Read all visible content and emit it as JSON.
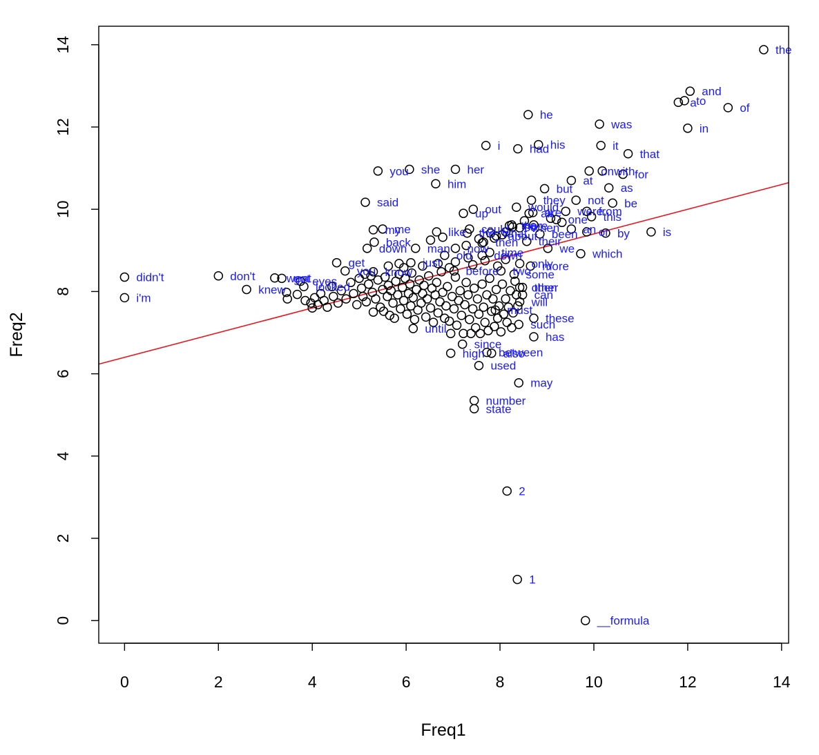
{
  "chart_data": {
    "type": "scatter",
    "title": "",
    "xlabel": "Freq1",
    "ylabel": "Freq2",
    "xlim": [
      -0.55,
      14.15
    ],
    "ylim": [
      -0.55,
      14.45
    ],
    "xticks": [
      "0",
      "2",
      "4",
      "6",
      "8",
      "10",
      "12",
      "14"
    ],
    "yticks": [
      "0",
      "2",
      "4",
      "6",
      "8",
      "10",
      "12",
      "14"
    ],
    "colors": {
      "points": "#000000",
      "labels": "#1a1aff",
      "fit_line": "#e8141e"
    },
    "regression_line": {
      "intercept": 6.4,
      "slope": 0.3
    },
    "labeled_points": [
      {
        "label": "the",
        "x": 13.62,
        "y": 13.88
      },
      {
        "label": "and",
        "x": 12.05,
        "y": 12.87
      },
      {
        "label": "a",
        "x": 11.8,
        "y": 12.6
      },
      {
        "label": "to",
        "x": 11.93,
        "y": 12.64
      },
      {
        "label": "of",
        "x": 12.86,
        "y": 12.47
      },
      {
        "label": "in",
        "x": 12.0,
        "y": 11.97
      },
      {
        "label": "he",
        "x": 8.6,
        "y": 12.3
      },
      {
        "label": "was",
        "x": 10.12,
        "y": 12.07
      },
      {
        "label": "his",
        "x": 8.82,
        "y": 11.57
      },
      {
        "label": "i",
        "x": 7.7,
        "y": 11.55
      },
      {
        "label": "had",
        "x": 8.38,
        "y": 11.47
      },
      {
        "label": "it",
        "x": 10.15,
        "y": 11.55
      },
      {
        "label": "that",
        "x": 10.73,
        "y": 11.35
      },
      {
        "label": "you",
        "x": 5.4,
        "y": 10.93
      },
      {
        "label": "she",
        "x": 6.07,
        "y": 10.97
      },
      {
        "label": "her",
        "x": 7.05,
        "y": 10.97
      },
      {
        "label": "on",
        "x": 9.9,
        "y": 10.93
      },
      {
        "label": "with",
        "x": 10.18,
        "y": 10.93
      },
      {
        "label": "for",
        "x": 10.62,
        "y": 10.85
      },
      {
        "label": "him",
        "x": 6.63,
        "y": 10.62
      },
      {
        "label": "at",
        "x": 9.52,
        "y": 10.7
      },
      {
        "label": "but",
        "x": 8.95,
        "y": 10.5
      },
      {
        "label": "as",
        "x": 10.32,
        "y": 10.52
      },
      {
        "label": "said",
        "x": 5.13,
        "y": 10.17
      },
      {
        "label": "they",
        "x": 8.67,
        "y": 10.22
      },
      {
        "label": "not",
        "x": 9.62,
        "y": 10.22
      },
      {
        "label": "be",
        "x": 10.4,
        "y": 10.15
      },
      {
        "label": "up",
        "x": 7.22,
        "y": 9.9
      },
      {
        "label": "out",
        "x": 7.43,
        "y": 10.0
      },
      {
        "label": "would",
        "x": 8.35,
        "y": 10.05
      },
      {
        "label": "all",
        "x": 8.62,
        "y": 9.9
      },
      {
        "label": "are",
        "x": 8.7,
        "y": 9.92
      },
      {
        "label": "were",
        "x": 9.4,
        "y": 9.95
      },
      {
        "label": "from",
        "x": 9.85,
        "y": 9.95
      },
      {
        "label": "this",
        "x": 9.95,
        "y": 9.82
      },
      {
        "label": "one",
        "x": 9.2,
        "y": 9.75
      },
      {
        "label": "me",
        "x": 5.5,
        "y": 9.52
      },
      {
        "label": "my",
        "x": 5.3,
        "y": 9.5
      },
      {
        "label": "like",
        "x": 6.65,
        "y": 9.45
      },
      {
        "label": "could",
        "x": 7.35,
        "y": 9.52
      },
      {
        "label": "the",
        "x": 7.3,
        "y": 9.42
      },
      {
        "label": "what",
        "x": 7.8,
        "y": 9.42
      },
      {
        "label": "about",
        "x": 7.92,
        "y": 9.35
      },
      {
        "label": "there",
        "x": 8.2,
        "y": 9.6
      },
      {
        "label": "so",
        "x": 8.27,
        "y": 9.57
      },
      {
        "label": "no",
        "x": 8.25,
        "y": 9.62
      },
      {
        "label": "when",
        "x": 8.42,
        "y": 9.55
      },
      {
        "label": "been",
        "x": 8.85,
        "y": 9.4
      },
      {
        "label": "an",
        "x": 9.52,
        "y": 9.52
      },
      {
        "label": "or",
        "x": 9.85,
        "y": 9.45
      },
      {
        "label": "by",
        "x": 10.25,
        "y": 9.42
      },
      {
        "label": "is",
        "x": 11.22,
        "y": 9.45
      },
      {
        "label": "back",
        "x": 5.32,
        "y": 9.2
      },
      {
        "label": "down",
        "x": 5.17,
        "y": 9.05
      },
      {
        "label": "then",
        "x": 7.65,
        "y": 9.2
      },
      {
        "label": "their",
        "x": 8.57,
        "y": 9.22
      },
      {
        "label": "man",
        "x": 6.2,
        "y": 9.05
      },
      {
        "label": "now",
        "x": 7.05,
        "y": 9.05
      },
      {
        "label": "we",
        "x": 9.02,
        "y": 9.05
      },
      {
        "label": "which",
        "x": 9.72,
        "y": 8.92
      },
      {
        "label": "old",
        "x": 6.82,
        "y": 8.88
      },
      {
        "label": "down",
        "x": 7.62,
        "y": 8.88
      },
      {
        "label": "time",
        "x": 7.78,
        "y": 8.95
      },
      {
        "label": "just",
        "x": 6.1,
        "y": 8.7
      },
      {
        "label": "get",
        "x": 4.52,
        "y": 8.7
      },
      {
        "label": "only",
        "x": 8.42,
        "y": 8.68
      },
      {
        "label": "more",
        "x": 8.65,
        "y": 8.62
      },
      {
        "label": "before",
        "x": 7.02,
        "y": 8.5
      },
      {
        "label": "two",
        "x": 8.02,
        "y": 8.5
      },
      {
        "label": "some",
        "x": 8.3,
        "y": 8.42
      },
      {
        "label": "you",
        "x": 4.7,
        "y": 8.5
      },
      {
        "label": "know",
        "x": 5.3,
        "y": 8.48
      },
      {
        "label": "didn't",
        "x": 0.0,
        "y": 8.35
      },
      {
        "label": "don't",
        "x": 2.0,
        "y": 8.38
      },
      {
        "label": "went",
        "x": 3.2,
        "y": 8.33
      },
      {
        "label": "got",
        "x": 3.35,
        "y": 8.32
      },
      {
        "label": "eyes",
        "x": 3.75,
        "y": 8.25
      },
      {
        "label": "knew",
        "x": 2.6,
        "y": 8.05
      },
      {
        "label": "looked",
        "x": 3.82,
        "y": 8.12
      },
      {
        "label": "other",
        "x": 8.42,
        "y": 8.1
      },
      {
        "label": "then",
        "x": 8.48,
        "y": 8.1
      },
      {
        "label": "can",
        "x": 8.48,
        "y": 7.92
      },
      {
        "label": "will",
        "x": 8.42,
        "y": 7.75
      },
      {
        "label": "i'm",
        "x": 0.0,
        "y": 7.85
      },
      {
        "label": "must",
        "x": 7.9,
        "y": 7.55
      },
      {
        "label": "these",
        "x": 8.72,
        "y": 7.35
      },
      {
        "label": "such",
        "x": 8.4,
        "y": 7.2
      },
      {
        "label": "until",
        "x": 6.15,
        "y": 7.1
      },
      {
        "label": "has",
        "x": 8.72,
        "y": 6.9
      },
      {
        "label": "since",
        "x": 7.2,
        "y": 6.72
      },
      {
        "label": "between",
        "x": 7.72,
        "y": 6.52
      },
      {
        "label": "high",
        "x": 6.95,
        "y": 6.5
      },
      {
        "label": "also",
        "x": 7.82,
        "y": 6.5
      },
      {
        "label": "used",
        "x": 7.55,
        "y": 6.2
      },
      {
        "label": "may",
        "x": 8.4,
        "y": 5.78
      },
      {
        "label": "number",
        "x": 7.45,
        "y": 5.35
      },
      {
        "label": "state",
        "x": 7.45,
        "y": 5.15
      },
      {
        "label": "2",
        "x": 8.15,
        "y": 3.15
      },
      {
        "label": "1",
        "x": 8.37,
        "y": 1.0
      },
      {
        "label": "__formula",
        "x": 9.82,
        "y": 0.0
      }
    ],
    "unlabeled_points": [
      [
        3.45,
        7.98
      ],
      [
        3.47,
        7.82
      ],
      [
        3.68,
        7.93
      ],
      [
        3.85,
        7.78
      ],
      [
        3.97,
        7.72
      ],
      [
        4.0,
        7.6
      ],
      [
        4.05,
        7.85
      ],
      [
        4.12,
        7.68
      ],
      [
        4.18,
        7.95
      ],
      [
        4.25,
        7.78
      ],
      [
        4.32,
        7.62
      ],
      [
        4.42,
        8.12
      ],
      [
        4.45,
        7.88
      ],
      [
        4.55,
        7.72
      ],
      [
        4.62,
        8.02
      ],
      [
        4.72,
        7.82
      ],
      [
        4.82,
        8.22
      ],
      [
        4.88,
        7.95
      ],
      [
        4.95,
        7.68
      ],
      [
        5.0,
        8.32
      ],
      [
        5.05,
        8.08
      ],
      [
        5.08,
        7.88
      ],
      [
        5.12,
        8.42
      ],
      [
        5.15,
        7.75
      ],
      [
        5.2,
        8.18
      ],
      [
        5.25,
        8.38
      ],
      [
        5.28,
        7.98
      ],
      [
        5.3,
        7.5
      ],
      [
        5.35,
        7.82
      ],
      [
        5.4,
        8.28
      ],
      [
        5.45,
        7.62
      ],
      [
        5.5,
        8.05
      ],
      [
        5.52,
        7.52
      ],
      [
        5.55,
        8.35
      ],
      [
        5.6,
        7.88
      ],
      [
        5.62,
        8.15
      ],
      [
        5.65,
        7.42
      ],
      [
        5.68,
        8.02
      ],
      [
        5.72,
        7.72
      ],
      [
        5.75,
        7.35
      ],
      [
        5.78,
        8.25
      ],
      [
        5.82,
        7.92
      ],
      [
        5.85,
        8.42
      ],
      [
        5.88,
        7.58
      ],
      [
        5.92,
        8.1
      ],
      [
        5.95,
        7.78
      ],
      [
        5.98,
        8.32
      ],
      [
        6.02,
        7.45
      ],
      [
        6.05,
        7.95
      ],
      [
        6.08,
        8.18
      ],
      [
        6.1,
        7.65
      ],
      [
        6.12,
        8.45
      ],
      [
        6.15,
        7.85
      ],
      [
        6.18,
        7.32
      ],
      [
        6.22,
        8.05
      ],
      [
        6.25,
        7.55
      ],
      [
        6.28,
        8.28
      ],
      [
        6.32,
        7.72
      ],
      [
        6.35,
        7.95
      ],
      [
        6.38,
        8.15
      ],
      [
        6.42,
        7.38
      ],
      [
        6.45,
        7.82
      ],
      [
        6.48,
        8.38
      ],
      [
        6.52,
        7.6
      ],
      [
        6.55,
        8.08
      ],
      [
        6.58,
        7.25
      ],
      [
        6.62,
        7.92
      ],
      [
        6.65,
        8.22
      ],
      [
        6.68,
        7.48
      ],
      [
        6.72,
        7.75
      ],
      [
        6.75,
        8.48
      ],
      [
        6.78,
        7.98
      ],
      [
        6.82,
        7.35
      ],
      [
        6.85,
        7.65
      ],
      [
        6.88,
        8.12
      ],
      [
        6.92,
        7.28
      ],
      [
        6.95,
        6.98
      ],
      [
        6.98,
        7.88
      ],
      [
        7.02,
        7.58
      ],
      [
        7.05,
        8.35
      ],
      [
        7.08,
        7.18
      ],
      [
        7.12,
        7.78
      ],
      [
        7.15,
        8.02
      ],
      [
        7.18,
        7.42
      ],
      [
        7.22,
        6.98
      ],
      [
        7.25,
        7.68
      ],
      [
        7.28,
        8.22
      ],
      [
        7.32,
        7.92
      ],
      [
        7.35,
        7.32
      ],
      [
        7.38,
        6.98
      ],
      [
        7.42,
        7.58
      ],
      [
        7.45,
        8.08
      ],
      [
        7.48,
        7.12
      ],
      [
        7.52,
        7.82
      ],
      [
        7.55,
        7.45
      ],
      [
        7.58,
        6.98
      ],
      [
        7.62,
        8.18
      ],
      [
        7.65,
        7.62
      ],
      [
        7.68,
        7.25
      ],
      [
        7.72,
        7.92
      ],
      [
        7.75,
        7.05
      ],
      [
        7.78,
        8.32
      ],
      [
        7.82,
        7.52
      ],
      [
        7.85,
        7.82
      ],
      [
        7.88,
        7.15
      ],
      [
        7.92,
        8.05
      ],
      [
        7.95,
        7.35
      ],
      [
        7.98,
        7.65
      ],
      [
        8.02,
        7.02
      ],
      [
        8.05,
        8.18
      ],
      [
        8.08,
        7.45
      ],
      [
        8.12,
        7.82
      ],
      [
        8.15,
        7.25
      ],
      [
        8.18,
        7.62
      ],
      [
        8.22,
        8.02
      ],
      [
        8.25,
        7.12
      ],
      [
        8.28,
        7.48
      ],
      [
        8.32,
        8.25
      ],
      [
        8.35,
        7.92
      ],
      [
        8.38,
        7.65
      ],
      [
        7.28,
        9.12
      ],
      [
        7.55,
        9.28
      ],
      [
        7.62,
        9.18
      ],
      [
        7.88,
        9.3
      ],
      [
        8.05,
        9.38
      ],
      [
        8.12,
        9.45
      ],
      [
        7.05,
        8.72
      ],
      [
        7.32,
        8.82
      ],
      [
        7.42,
        8.65
      ],
      [
        7.68,
        8.75
      ],
      [
        7.95,
        8.62
      ],
      [
        8.12,
        8.78
      ],
      [
        6.68,
        8.68
      ],
      [
        6.92,
        8.58
      ],
      [
        5.95,
        8.58
      ],
      [
        6.35,
        8.62
      ],
      [
        5.62,
        8.62
      ],
      [
        5.85,
        8.68
      ],
      [
        6.52,
        9.25
      ],
      [
        6.78,
        9.32
      ],
      [
        8.52,
        9.72
      ],
      [
        8.72,
        9.62
      ],
      [
        9.08,
        9.78
      ],
      [
        9.32,
        9.68
      ]
    ]
  }
}
